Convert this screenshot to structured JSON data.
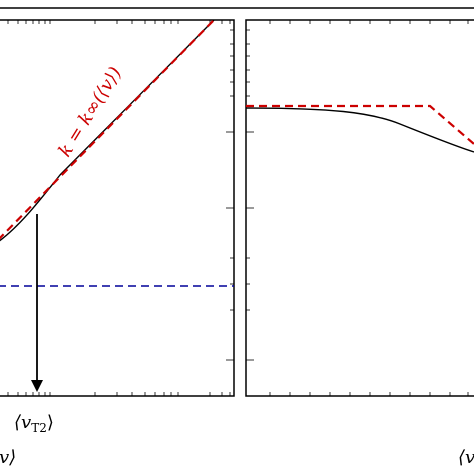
{
  "chart_data": [
    {
      "type": "line",
      "panel": "left",
      "x_scale": "log",
      "y_scale": "log",
      "grid": false,
      "legend": "none",
      "series": [
        {
          "style": "solid",
          "color": "#000000",
          "points": [
            [
              0.0,
              0.0
            ],
            [
              0.2,
              0.1
            ],
            [
              0.4,
              0.25
            ],
            [
              0.6,
              0.5
            ],
            [
              1.0,
              1.0
            ]
          ]
        },
        {
          "style": "dashed",
          "color": "#cc0000",
          "name": "k = k∞(⟨v⟩)",
          "points": [
            [
              0.0,
              0.0
            ],
            [
              1.0,
              1.0
            ]
          ]
        },
        {
          "style": "dashed",
          "color": "#000099",
          "points": [
            [
              0.0,
              0.5
            ],
            [
              1.0,
              0.5
            ]
          ]
        }
      ],
      "annotations": [
        {
          "type": "arrow",
          "label": "⟨vT2⟩",
          "x": 0.5
        }
      ],
      "xlabel": "⟨v⟩"
    },
    {
      "type": "line",
      "panel": "right",
      "x_scale": "log",
      "y_scale": "log",
      "grid": false,
      "legend": "none",
      "series": [
        {
          "style": "solid",
          "color": "#000000",
          "points": [
            [
              0.0,
              1.0
            ],
            [
              0.6,
              0.98
            ],
            [
              0.8,
              0.9
            ],
            [
              1.0,
              0.75
            ]
          ]
        },
        {
          "style": "dashed",
          "color": "#cc0000",
          "points": [
            [
              0.0,
              1.0
            ],
            [
              0.8,
              1.0
            ],
            [
              1.0,
              0.8
            ]
          ]
        }
      ],
      "xlabel": "⟨v⟩"
    }
  ],
  "labels": {
    "red_line_label": "k = k∞(⟨v⟩)",
    "arrow_label_main": "⟨v",
    "arrow_label_sub": "T2",
    "arrow_label_close": "⟩",
    "left_xlabel": "v⟩",
    "right_xlabel": "⟨v"
  },
  "colors": {
    "black": "#000000",
    "red": "#cc0000",
    "blue": "#000099"
  }
}
